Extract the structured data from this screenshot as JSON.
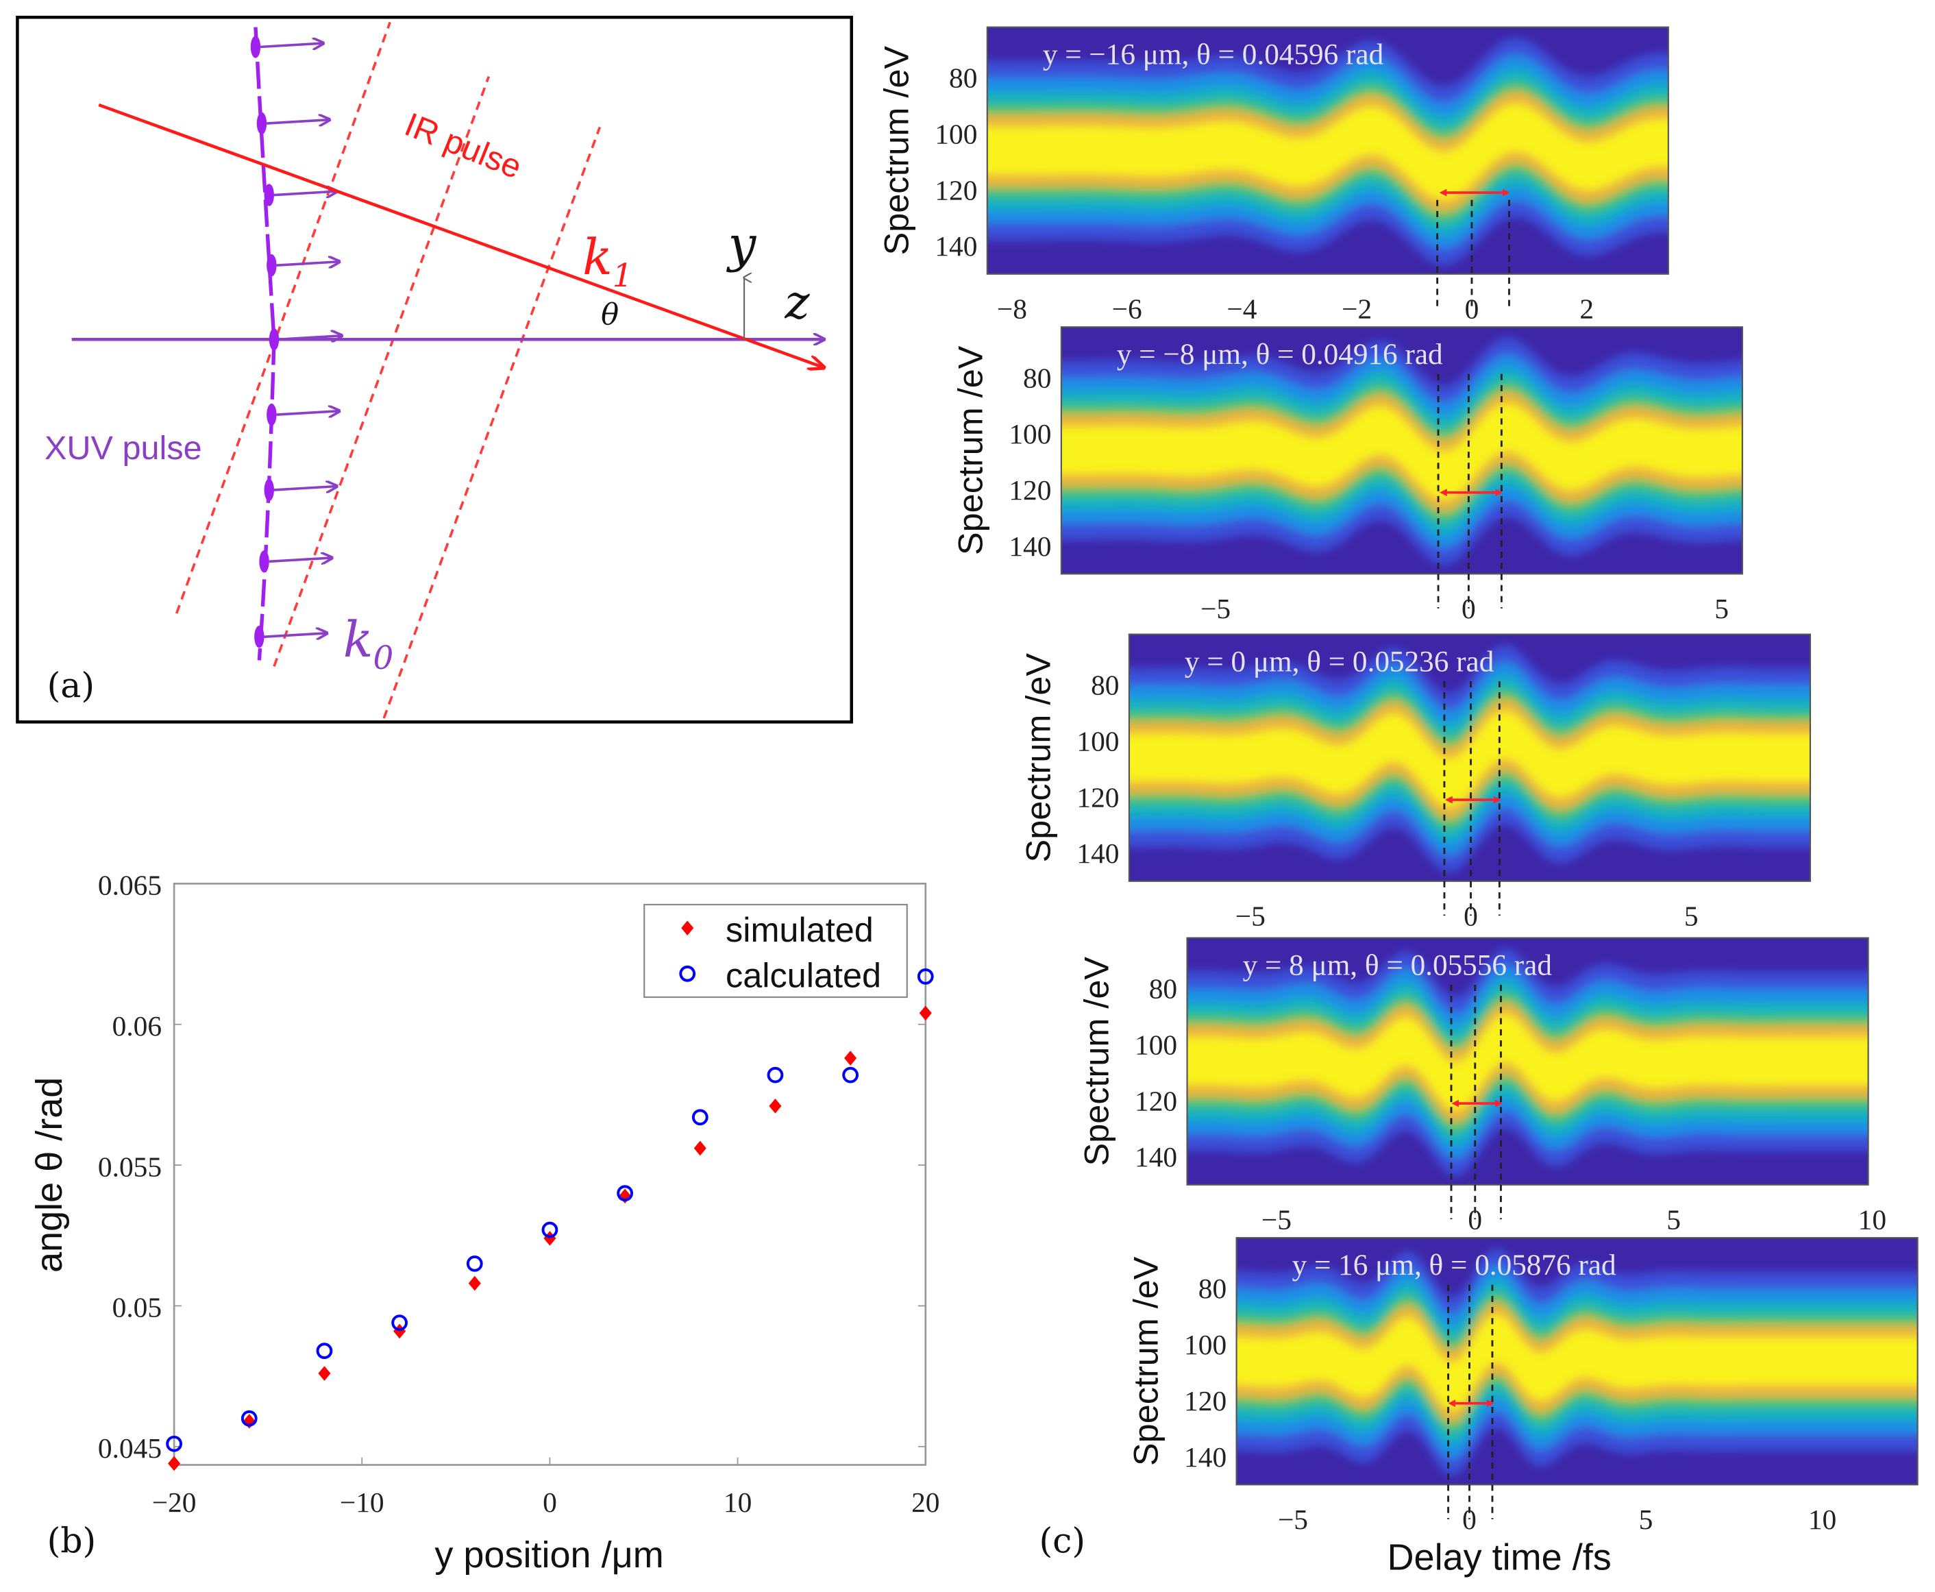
{
  "panel_a": {
    "label": "(a)",
    "ir_pulse_label": "IR pulse",
    "xuv_pulse_label": "XUV pulse",
    "k1_label": "k",
    "k1_sub": "1",
    "k0_label": "k",
    "k0_sub": "0",
    "y_axis_label": "y",
    "z_axis_label": "z",
    "theta_label": "θ",
    "colors": {
      "ir": "#ff1a1a",
      "xuv": "#8a3fc6",
      "xuv_pulse": "#a020f0"
    }
  },
  "panel_b_label": "(b)",
  "panel_c_label": "(c)",
  "chart_data": [
    {
      "type": "scatter",
      "title": "",
      "xlabel": "y position /μm",
      "ylabel": "angle θ /rad",
      "xlim": [
        -20,
        20
      ],
      "ylim": [
        0.04435,
        0.065
      ],
      "xticks": [
        -20,
        -10,
        0,
        10,
        20
      ],
      "xtick_labels": [
        "−20",
        "−10",
        "0",
        "10",
        "20"
      ],
      "yticks": [
        0.045,
        0.05,
        0.055,
        0.06,
        0.065
      ],
      "ytick_labels": [
        "0.045",
        "0.05",
        "0.055",
        "0.06",
        "0.065"
      ],
      "legend_position": "top-right",
      "x": [
        -20,
        -16,
        -12,
        -8,
        -4,
        0,
        4,
        8,
        12,
        16,
        20
      ],
      "series": [
        {
          "name": "simulated",
          "marker": "filled-diamond",
          "color": "#ff0000",
          "values": [
            0.0444,
            0.0459,
            0.0476,
            0.0491,
            0.0508,
            0.0524,
            0.0539,
            0.0556,
            0.0571,
            0.0588,
            0.0604
          ]
        },
        {
          "name": "calculated",
          "marker": "open-circle",
          "color": "#0000ff",
          "values": [
            0.0451,
            0.046,
            0.0484,
            0.0494,
            0.0515,
            0.0527,
            0.054,
            0.0567,
            0.0582,
            0.0582,
            0.0617
          ]
        }
      ]
    },
    {
      "type": "heatmap",
      "xlabel": "Delay time /fs",
      "ylabel": "Spectrum /eV",
      "colormap": [
        "#3e26a8",
        "#3a4fd8",
        "#1f8ee6",
        "#17b3bd",
        "#4cc36a",
        "#eab43a",
        "#f9f21c"
      ],
      "marker_delays_fs": [
        -0.6,
        0,
        0.65
      ],
      "arrow": {
        "from_fs": -0.5,
        "to_fs": 0.6,
        "energy_eV": 121,
        "color": "#ff2030"
      },
      "band_center_eV": 106,
      "panels": [
        {
          "title": "y = −16 μm, θ = 0.04596 rad",
          "xlim": [
            -8.43,
            3.42
          ],
          "ylim": [
            62,
            150
          ],
          "xticks": [
            -8,
            -6,
            -4,
            -2,
            0,
            2
          ],
          "xtick_labels": [
            "−8",
            "−6",
            "−4",
            "−2",
            "0",
            "2"
          ],
          "yticks": [
            80,
            100,
            120,
            140
          ],
          "ytick_labels": [
            "80",
            "100",
            "120",
            "140"
          ]
        },
        {
          "title": "y = −8 μm, θ = 0.04916 rad",
          "xlim": [
            -8.05,
            5.41
          ],
          "ylim": [
            62,
            150
          ],
          "xticks": [
            -5,
            0,
            5
          ],
          "xtick_labels": [
            "−5",
            "0",
            "5"
          ],
          "yticks": [
            80,
            100,
            120,
            140
          ],
          "ytick_labels": [
            "80",
            "100",
            "120",
            "140"
          ]
        },
        {
          "title": "y = 0 μm, θ = 0.05236 rad",
          "xlim": [
            -7.75,
            7.7
          ],
          "ylim": [
            62,
            150
          ],
          "xticks": [
            -5,
            0,
            5
          ],
          "xtick_labels": [
            "−5",
            "0",
            "5"
          ],
          "yticks": [
            80,
            100,
            120,
            140
          ],
          "ytick_labels": [
            "80",
            "100",
            "120",
            "140"
          ]
        },
        {
          "title": "y = 8 μm, θ = 0.05556 rad",
          "xlim": [
            -7.25,
            9.9
          ],
          "ylim": [
            62,
            150
          ],
          "xticks": [
            -5,
            0,
            5,
            10
          ],
          "xtick_labels": [
            "−5",
            "0",
            "5",
            "10"
          ],
          "yticks": [
            80,
            100,
            120,
            140
          ],
          "ytick_labels": [
            "80",
            "100",
            "120",
            "140"
          ]
        },
        {
          "title": "y = 16 μm, θ = 0.05876 rad",
          "xlim": [
            -6.6,
            12.7
          ],
          "ylim": [
            62,
            150
          ],
          "xticks": [
            -5,
            0,
            5,
            10
          ],
          "xtick_labels": [
            "−5",
            "0",
            "5",
            "10"
          ],
          "yticks": [
            80,
            100,
            120,
            140
          ],
          "ytick_labels": [
            "80",
            "100",
            "120",
            "140"
          ]
        }
      ]
    }
  ]
}
